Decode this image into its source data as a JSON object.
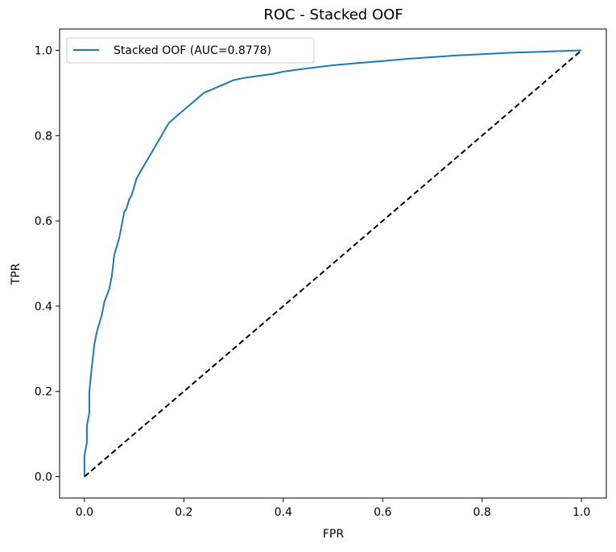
{
  "chart_data": {
    "type": "line",
    "title": "ROC - Stacked OOF",
    "xlabel": "FPR",
    "ylabel": "TPR",
    "xlim": [
      -0.05,
      1.05
    ],
    "ylim": [
      -0.05,
      1.05
    ],
    "xticks": [
      0.0,
      0.2,
      0.4,
      0.6,
      0.8,
      1.0
    ],
    "yticks": [
      0.0,
      0.2,
      0.4,
      0.6,
      0.8,
      1.0
    ],
    "xtick_labels": [
      "0.0",
      "0.2",
      "0.4",
      "0.6",
      "0.8",
      "1.0"
    ],
    "ytick_labels": [
      "0.0",
      "0.2",
      "0.4",
      "0.6",
      "0.8",
      "1.0"
    ],
    "grid": false,
    "legend_position": "upper-left",
    "series": [
      {
        "name": "Stacked OOF (AUC=0.8778)",
        "color": "#1f77b4",
        "style": "solid",
        "x": [
          0.0,
          0.0,
          0.005,
          0.005,
          0.01,
          0.01,
          0.015,
          0.02,
          0.025,
          0.03,
          0.035,
          0.04,
          0.05,
          0.055,
          0.06,
          0.065,
          0.07,
          0.075,
          0.08,
          0.085,
          0.09,
          0.095,
          0.1,
          0.105,
          0.11,
          0.12,
          0.13,
          0.14,
          0.15,
          0.16,
          0.17,
          0.18,
          0.19,
          0.2,
          0.21,
          0.22,
          0.23,
          0.24,
          0.25,
          0.26,
          0.27,
          0.28,
          0.29,
          0.3,
          0.32,
          0.35,
          0.38,
          0.4,
          0.45,
          0.5,
          0.55,
          0.6,
          0.65,
          0.7,
          0.75,
          0.8,
          0.85,
          0.9,
          0.95,
          1.0
        ],
        "y": [
          0.0,
          0.05,
          0.08,
          0.12,
          0.15,
          0.2,
          0.26,
          0.31,
          0.34,
          0.36,
          0.38,
          0.41,
          0.44,
          0.47,
          0.52,
          0.54,
          0.56,
          0.59,
          0.62,
          0.63,
          0.65,
          0.66,
          0.68,
          0.7,
          0.71,
          0.73,
          0.75,
          0.77,
          0.79,
          0.81,
          0.83,
          0.84,
          0.85,
          0.86,
          0.87,
          0.88,
          0.89,
          0.9,
          0.905,
          0.91,
          0.915,
          0.92,
          0.925,
          0.93,
          0.935,
          0.94,
          0.945,
          0.95,
          0.958,
          0.965,
          0.97,
          0.975,
          0.98,
          0.984,
          0.988,
          0.991,
          0.994,
          0.996,
          0.998,
          1.0
        ]
      },
      {
        "name": "",
        "color": "#000000",
        "style": "dashed",
        "x": [
          0.0,
          1.0
        ],
        "y": [
          0.0,
          1.0
        ]
      }
    ]
  }
}
